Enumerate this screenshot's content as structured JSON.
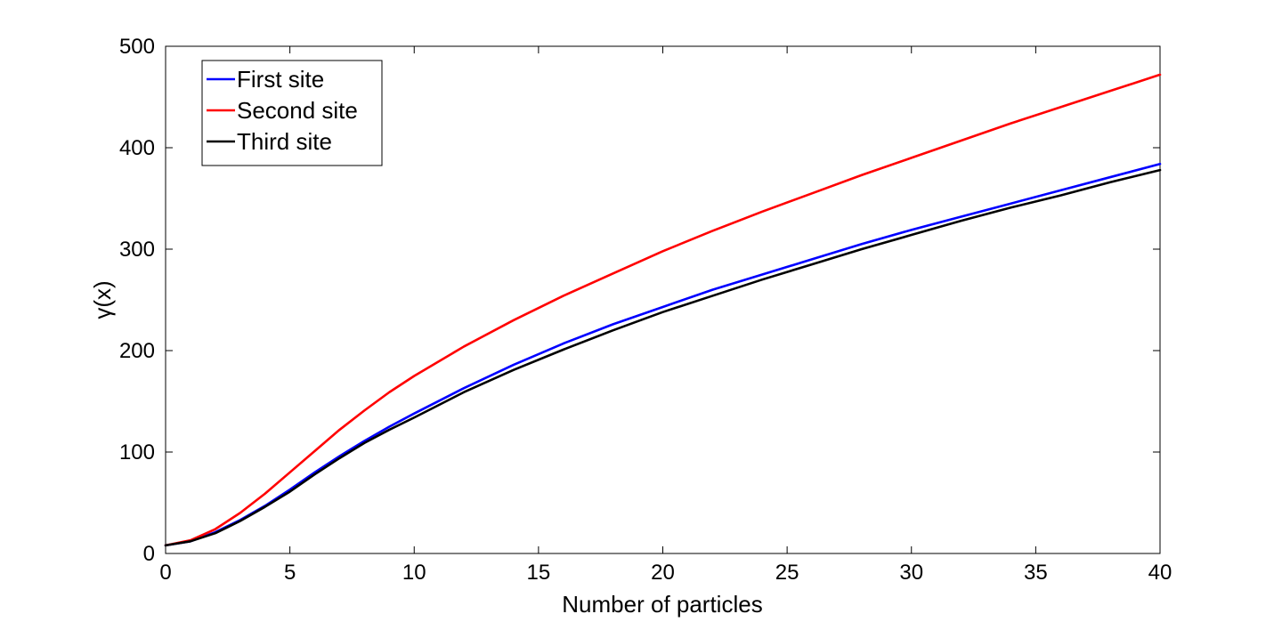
{
  "chart_data": {
    "type": "line",
    "title": "",
    "xlabel": "Number of particles",
    "ylabel": "γ(x)",
    "xlim": [
      0,
      40
    ],
    "ylim": [
      0,
      500
    ],
    "xticks": [
      0,
      5,
      10,
      15,
      20,
      25,
      30,
      35,
      40
    ],
    "yticks": [
      0,
      100,
      200,
      300,
      400,
      500
    ],
    "grid": false,
    "legend_position": "top-left",
    "x": [
      0,
      1,
      2,
      3,
      4,
      5,
      6,
      7,
      8,
      9,
      10,
      12,
      14,
      16,
      18,
      20,
      22,
      24,
      26,
      28,
      30,
      32,
      34,
      36,
      38,
      40
    ],
    "series": [
      {
        "name": "First site",
        "color": "#0000ff",
        "values": [
          8,
          12,
          21,
          33,
          47,
          63,
          80,
          96,
          111,
          125,
          138,
          163,
          186,
          207,
          226,
          243,
          260,
          275,
          290,
          305,
          319,
          332,
          345,
          358,
          371,
          384
        ]
      },
      {
        "name": "Second site",
        "color": "#ff0000",
        "values": [
          8,
          13,
          24,
          40,
          59,
          80,
          101,
          122,
          141,
          159,
          175,
          204,
          230,
          254,
          276,
          298,
          318,
          337,
          355,
          373,
          390,
          407,
          424,
          440,
          456,
          472
        ]
      },
      {
        "name": "Third site",
        "color": "#000000",
        "values": [
          8,
          12,
          20,
          32,
          46,
          61,
          78,
          94,
          109,
          122,
          134,
          159,
          181,
          201,
          220,
          238,
          254,
          270,
          285,
          300,
          314,
          328,
          341,
          353,
          366,
          378
        ]
      }
    ]
  }
}
